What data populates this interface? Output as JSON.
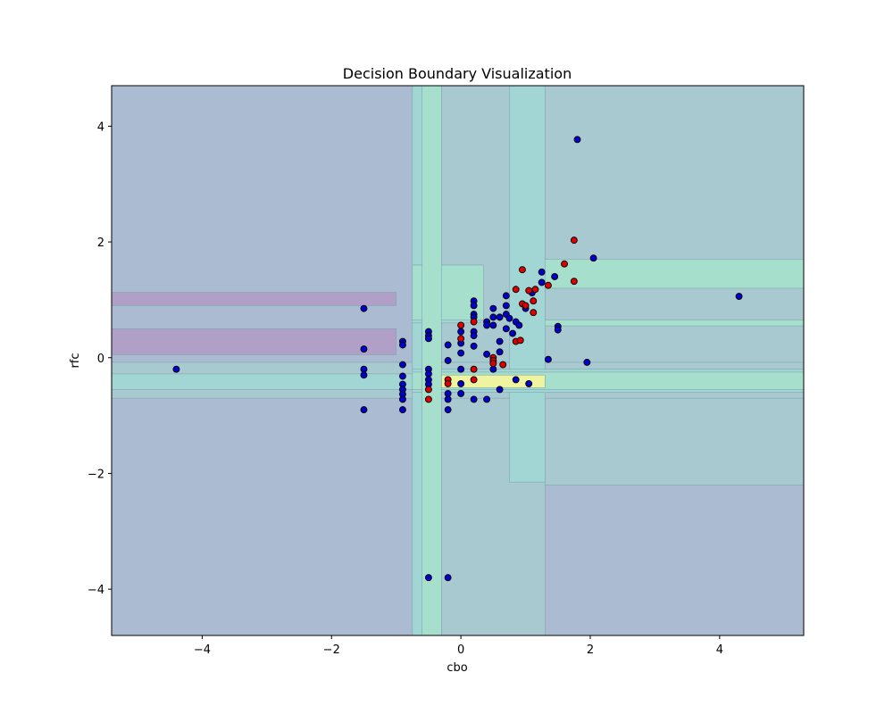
{
  "chart_data": {
    "type": "scatter",
    "title": "Decision Boundary Visualization",
    "xlabel": "cbo",
    "ylabel": "rfc",
    "xlim": [
      -5.4,
      5.3
    ],
    "ylim": [
      -4.8,
      4.7
    ],
    "x_ticks": [
      -4,
      -2,
      0,
      2,
      4
    ],
    "y_ticks": [
      -4,
      -2,
      0,
      2,
      4
    ],
    "x_tick_labels": [
      "−4",
      "−2",
      "0",
      "2",
      "4"
    ],
    "y_tick_labels": [
      "−4",
      "−2",
      "0",
      "2",
      "4"
    ],
    "grid": false,
    "colors": {
      "class_0": "#0000cc",
      "class_1": "#dd0000",
      "region_low": "#aabbd2",
      "region_purple": "#b09fc7",
      "region_mid": "#a9c9d1",
      "region_teal": "#a2d6d4",
      "region_green": "#a6e0cc",
      "region_yellow": "#eef4a0"
    },
    "decision_regions": [
      {
        "x": [
          -5.4,
          5.3
        ],
        "y": [
          -4.8,
          4.7
        ],
        "level": "low"
      },
      {
        "x": [
          -0.75,
          1.3
        ],
        "y": [
          -4.8,
          4.7
        ],
        "level": "mid"
      },
      {
        "x": [
          1.3,
          5.3
        ],
        "y": [
          -2.2,
          4.7
        ],
        "level": "mid"
      },
      {
        "x": [
          -5.4,
          5.3
        ],
        "y": [
          -0.7,
          -0.08
        ],
        "level": "mid"
      },
      {
        "x": [
          -0.75,
          -0.3
        ],
        "y": [
          -4.8,
          4.7
        ],
        "level": "teal"
      },
      {
        "x": [
          0.75,
          1.3
        ],
        "y": [
          -2.15,
          4.7
        ],
        "level": "teal"
      },
      {
        "x": [
          -5.4,
          -0.75
        ],
        "y": [
          -0.55,
          -0.28
        ],
        "level": "teal"
      },
      {
        "x": [
          -0.75,
          5.3
        ],
        "y": [
          -0.6,
          -0.2
        ],
        "level": "teal"
      },
      {
        "x": [
          -0.75,
          0.3
        ],
        "y": [
          0.6,
          1.6
        ],
        "level": "teal"
      },
      {
        "x": [
          1.3,
          5.3
        ],
        "y": [
          1.2,
          1.7
        ],
        "level": "green"
      },
      {
        "x": [
          -0.75,
          0.35
        ],
        "y": [
          0.65,
          1.6
        ],
        "level": "green"
      },
      {
        "x": [
          1.3,
          5.3
        ],
        "y": [
          0.55,
          0.65
        ],
        "level": "green"
      },
      {
        "x": [
          -0.75,
          5.3
        ],
        "y": [
          -0.55,
          -0.25
        ],
        "level": "green"
      },
      {
        "x": [
          -0.6,
          -0.3
        ],
        "y": [
          -4.8,
          4.7
        ],
        "level": "green"
      },
      {
        "x": [
          -0.3,
          1.3
        ],
        "y": [
          -0.52,
          -0.3
        ],
        "level": "yellow"
      },
      {
        "x": [
          -5.4,
          -1.0
        ],
        "y": [
          0.9,
          1.13
        ],
        "level": "purple"
      },
      {
        "x": [
          -5.4,
          -1.0
        ],
        "y": [
          0.05,
          0.5
        ],
        "level": "purple"
      }
    ],
    "series": [
      {
        "points": [
          [
            -4.4,
            -0.2
          ],
          [
            -1.5,
            0.85
          ],
          [
            -1.5,
            0.15
          ],
          [
            -1.5,
            -0.2
          ],
          [
            -1.5,
            -0.3
          ],
          [
            -1.5,
            -0.9
          ],
          [
            -0.9,
            0.28
          ],
          [
            -0.9,
            0.22
          ],
          [
            -0.9,
            -0.12
          ],
          [
            -0.9,
            -0.32
          ],
          [
            -0.9,
            -0.46
          ],
          [
            -0.9,
            -0.55
          ],
          [
            -0.9,
            -0.63
          ],
          [
            -0.9,
            -0.72
          ],
          [
            -0.9,
            -0.9
          ],
          [
            -0.5,
            0.45
          ],
          [
            -0.5,
            0.38
          ],
          [
            -0.5,
            0.33
          ],
          [
            -0.5,
            -0.2
          ],
          [
            -0.5,
            -0.28
          ],
          [
            -0.5,
            -0.38
          ],
          [
            -0.5,
            -0.46
          ],
          [
            -0.5,
            -3.8
          ],
          [
            -0.2,
            -3.8
          ],
          [
            -0.2,
            0.22
          ],
          [
            -0.2,
            -0.05
          ],
          [
            -0.2,
            -0.62
          ],
          [
            -0.2,
            -0.72
          ],
          [
            -0.2,
            -0.9
          ],
          [
            0,
            0.45
          ],
          [
            0,
            0.25
          ],
          [
            0,
            0.08
          ],
          [
            0,
            -0.2
          ],
          [
            0,
            -0.45
          ],
          [
            0,
            -0.62
          ],
          [
            0.2,
            0.98
          ],
          [
            0.2,
            0.9
          ],
          [
            0.2,
            0.75
          ],
          [
            0.2,
            0.7
          ],
          [
            0.2,
            0.45
          ],
          [
            0.2,
            0.38
          ],
          [
            0.2,
            0.2
          ],
          [
            0.2,
            -0.72
          ],
          [
            0.4,
            0.62
          ],
          [
            0.4,
            0.56
          ],
          [
            0.4,
            0.06
          ],
          [
            0.4,
            -0.72
          ],
          [
            0.5,
            0.85
          ],
          [
            0.5,
            0.7
          ],
          [
            0.5,
            0.56
          ],
          [
            0.5,
            -0.2
          ],
          [
            0.6,
            0.7
          ],
          [
            0.6,
            0.28
          ],
          [
            0.6,
            0.1
          ],
          [
            0.6,
            -0.55
          ],
          [
            0.7,
            1.07
          ],
          [
            0.7,
            0.9
          ],
          [
            0.7,
            0.75
          ],
          [
            0.7,
            0.5
          ],
          [
            0.75,
            0.68
          ],
          [
            0.8,
            0.42
          ],
          [
            0.85,
            0.62
          ],
          [
            0.9,
            0.56
          ],
          [
            0.85,
            -0.38
          ],
          [
            1.0,
            0.85
          ],
          [
            1.05,
            -0.45
          ],
          [
            1.1,
            1.12
          ],
          [
            1.25,
            1.48
          ],
          [
            1.25,
            1.3
          ],
          [
            1.45,
            1.4
          ],
          [
            1.5,
            0.54
          ],
          [
            1.5,
            0.48
          ],
          [
            1.35,
            -0.03
          ],
          [
            1.95,
            -0.08
          ],
          [
            2.05,
            1.72
          ],
          [
            1.8,
            3.77
          ],
          [
            4.3,
            1.06
          ]
        ]
      },
      {
        "points": [
          [
            -0.5,
            -0.55
          ],
          [
            -0.5,
            -0.72
          ],
          [
            -0.2,
            -0.38
          ],
          [
            -0.2,
            -0.45
          ],
          [
            0,
            0.56
          ],
          [
            0,
            0.33
          ],
          [
            0.2,
            0.62
          ],
          [
            0.2,
            -0.2
          ],
          [
            0.2,
            -0.38
          ],
          [
            0.5,
            0.0
          ],
          [
            0.5,
            -0.05
          ],
          [
            0.5,
            -0.1
          ],
          [
            0.65,
            -0.12
          ],
          [
            0.85,
            1.18
          ],
          [
            0.85,
            0.28
          ],
          [
            0.92,
            0.3
          ],
          [
            0.95,
            1.52
          ],
          [
            0.95,
            0.93
          ],
          [
            1.0,
            0.9
          ],
          [
            1.05,
            1.16
          ],
          [
            1.15,
            1.18
          ],
          [
            1.12,
            0.98
          ],
          [
            1.12,
            0.78
          ],
          [
            1.35,
            1.25
          ],
          [
            1.6,
            1.62
          ],
          [
            1.75,
            2.03
          ],
          [
            1.75,
            1.32
          ]
        ]
      }
    ]
  }
}
